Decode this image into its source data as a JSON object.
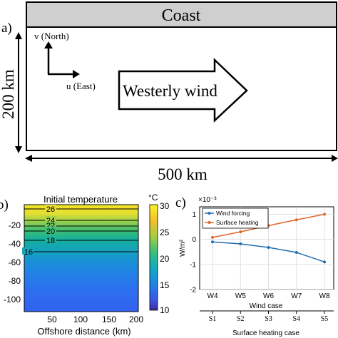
{
  "panel_a": {
    "label": "a)",
    "coast_label": "Coast",
    "north_label": "v (North)",
    "east_label": "u (East)",
    "wind_label": "Westerly wind",
    "height_label": "200 km",
    "width_label": "500 km"
  },
  "panel_b": {
    "label": "b)",
    "title": "Initial temperature",
    "colorbar_unit": "°C",
    "colorbar_ticks": [
      "30",
      "25",
      "20",
      "15",
      "10"
    ],
    "y_ticks": [
      "-20",
      "-40",
      "-60",
      "-80",
      "-100"
    ],
    "x_ticks": [
      "50",
      "100",
      "150",
      "200"
    ],
    "xlabel": "Offshore distance (km)",
    "contour_labels": [
      "26",
      "24",
      "22",
      "20",
      "18",
      "16"
    ]
  },
  "panel_c": {
    "label": "c)",
    "exponent": "×10⁻³",
    "ylabel": "W/m²",
    "legend": [
      "Wind forcing",
      "Surface heating"
    ],
    "xlabel_wind": "Wind case",
    "xlabel_heating": "Surface heating case",
    "colors": {
      "wind": "#1f6fb2",
      "heating": "#e0662b"
    }
  },
  "chart_data": {
    "type": "line",
    "categories": [
      "W4",
      "W5",
      "W6",
      "W7",
      "W8"
    ],
    "secondary_categories": [
      "S1",
      "S2",
      "S3",
      "S4",
      "S5"
    ],
    "y_ticks": [
      "1",
      "0",
      "-1",
      "-2"
    ],
    "ylim": [
      -2,
      1.3
    ],
    "series": [
      {
        "name": "Wind forcing",
        "values": [
          -0.1,
          -0.18,
          -0.32,
          -0.52,
          -0.9
        ]
      },
      {
        "name": "Surface heating",
        "values": [
          0.08,
          0.3,
          0.55,
          0.78,
          1.0
        ]
      }
    ]
  }
}
